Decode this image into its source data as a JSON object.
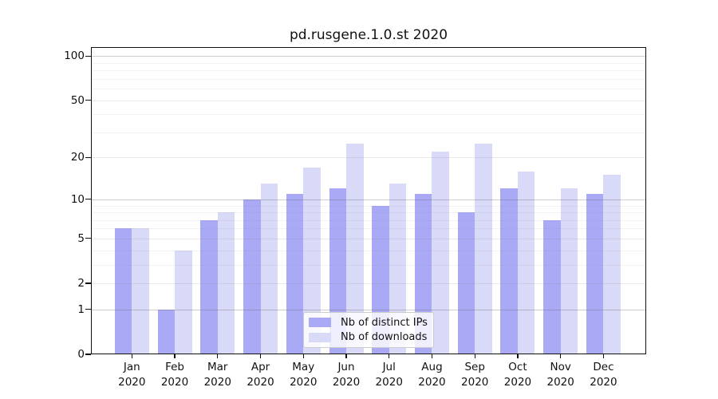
{
  "chart_data": {
    "type": "bar",
    "title": "pd.rusgene.1.0.st 2020",
    "categories": [
      "Jan",
      "Feb",
      "Mar",
      "Apr",
      "May",
      "Jun",
      "Jul",
      "Aug",
      "Sep",
      "Oct",
      "Nov",
      "Dec"
    ],
    "category_year": "2020",
    "series": [
      {
        "name": "Nb of distinct IPs",
        "color": "#a9a9f6",
        "values": [
          6,
          1,
          7,
          10,
          11,
          12,
          9,
          11,
          8,
          12,
          7,
          11
        ]
      },
      {
        "name": "Nb of downloads",
        "color": "#d9d9f8",
        "values": [
          6,
          4,
          8,
          13,
          17,
          25,
          13,
          22,
          25,
          16,
          12,
          15
        ]
      }
    ],
    "xlabel": "",
    "ylabel": "",
    "y_scale": "log10(1+value)",
    "y_ticks": [
      0,
      1,
      2,
      5,
      10,
      20,
      50,
      100
    ],
    "ylim": [
      0,
      115
    ],
    "grid": {
      "decade_lines": [
        1,
        10,
        100
      ],
      "mid_lines": [
        2,
        5,
        20,
        50
      ],
      "minor_lines": [
        3,
        4,
        6,
        7,
        8,
        9,
        30,
        40,
        60,
        70,
        80,
        90
      ]
    },
    "legend_position": "bottom-center",
    "legend": [
      "Nb of distinct IPs",
      "Nb of downloads"
    ],
    "colors": {
      "bar_ips": "#a9a9f6",
      "bar_downloads": "#d9d9f8",
      "grid_decade": "#c3c3c3",
      "grid_mid": "#e2e2e2",
      "grid_minor": "#eeeeee",
      "spine": "#111111",
      "background": "#ffffff"
    }
  }
}
